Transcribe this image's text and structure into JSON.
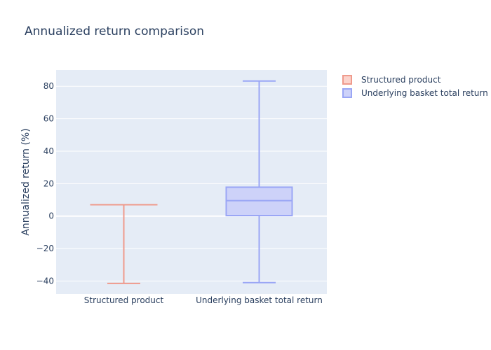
{
  "chart_data": {
    "type": "box",
    "title": "Annualized return comparison",
    "xlabel": "",
    "ylabel": "Annualized return (%)",
    "ylim": [
      -48,
      90
    ],
    "yticks": [
      80,
      60,
      40,
      20,
      0,
      -20,
      -40
    ],
    "categories": [
      "Structured product",
      "Underlying basket total return"
    ],
    "series": [
      {
        "name": "Structured product",
        "category": "Structured product",
        "stats": {
          "min": -41.5,
          "q1": 7,
          "median": 7,
          "q3": 7,
          "max": 7
        },
        "line_color": "#ef9a8c",
        "fill_color": "#fbd3cc"
      },
      {
        "name": "Underlying basket total return",
        "category": "Underlying basket total return",
        "stats": {
          "min": -41,
          "q1": 0.3,
          "median": 9.5,
          "q3": 17.8,
          "max": 83.2
        },
        "line_color": "#9aa6f5",
        "fill_color": "#cdd2f9"
      }
    ],
    "legend_position": "top-right",
    "grid": true,
    "plot_bg": "#e5ecf6",
    "text_color": "#2a3f5f"
  }
}
